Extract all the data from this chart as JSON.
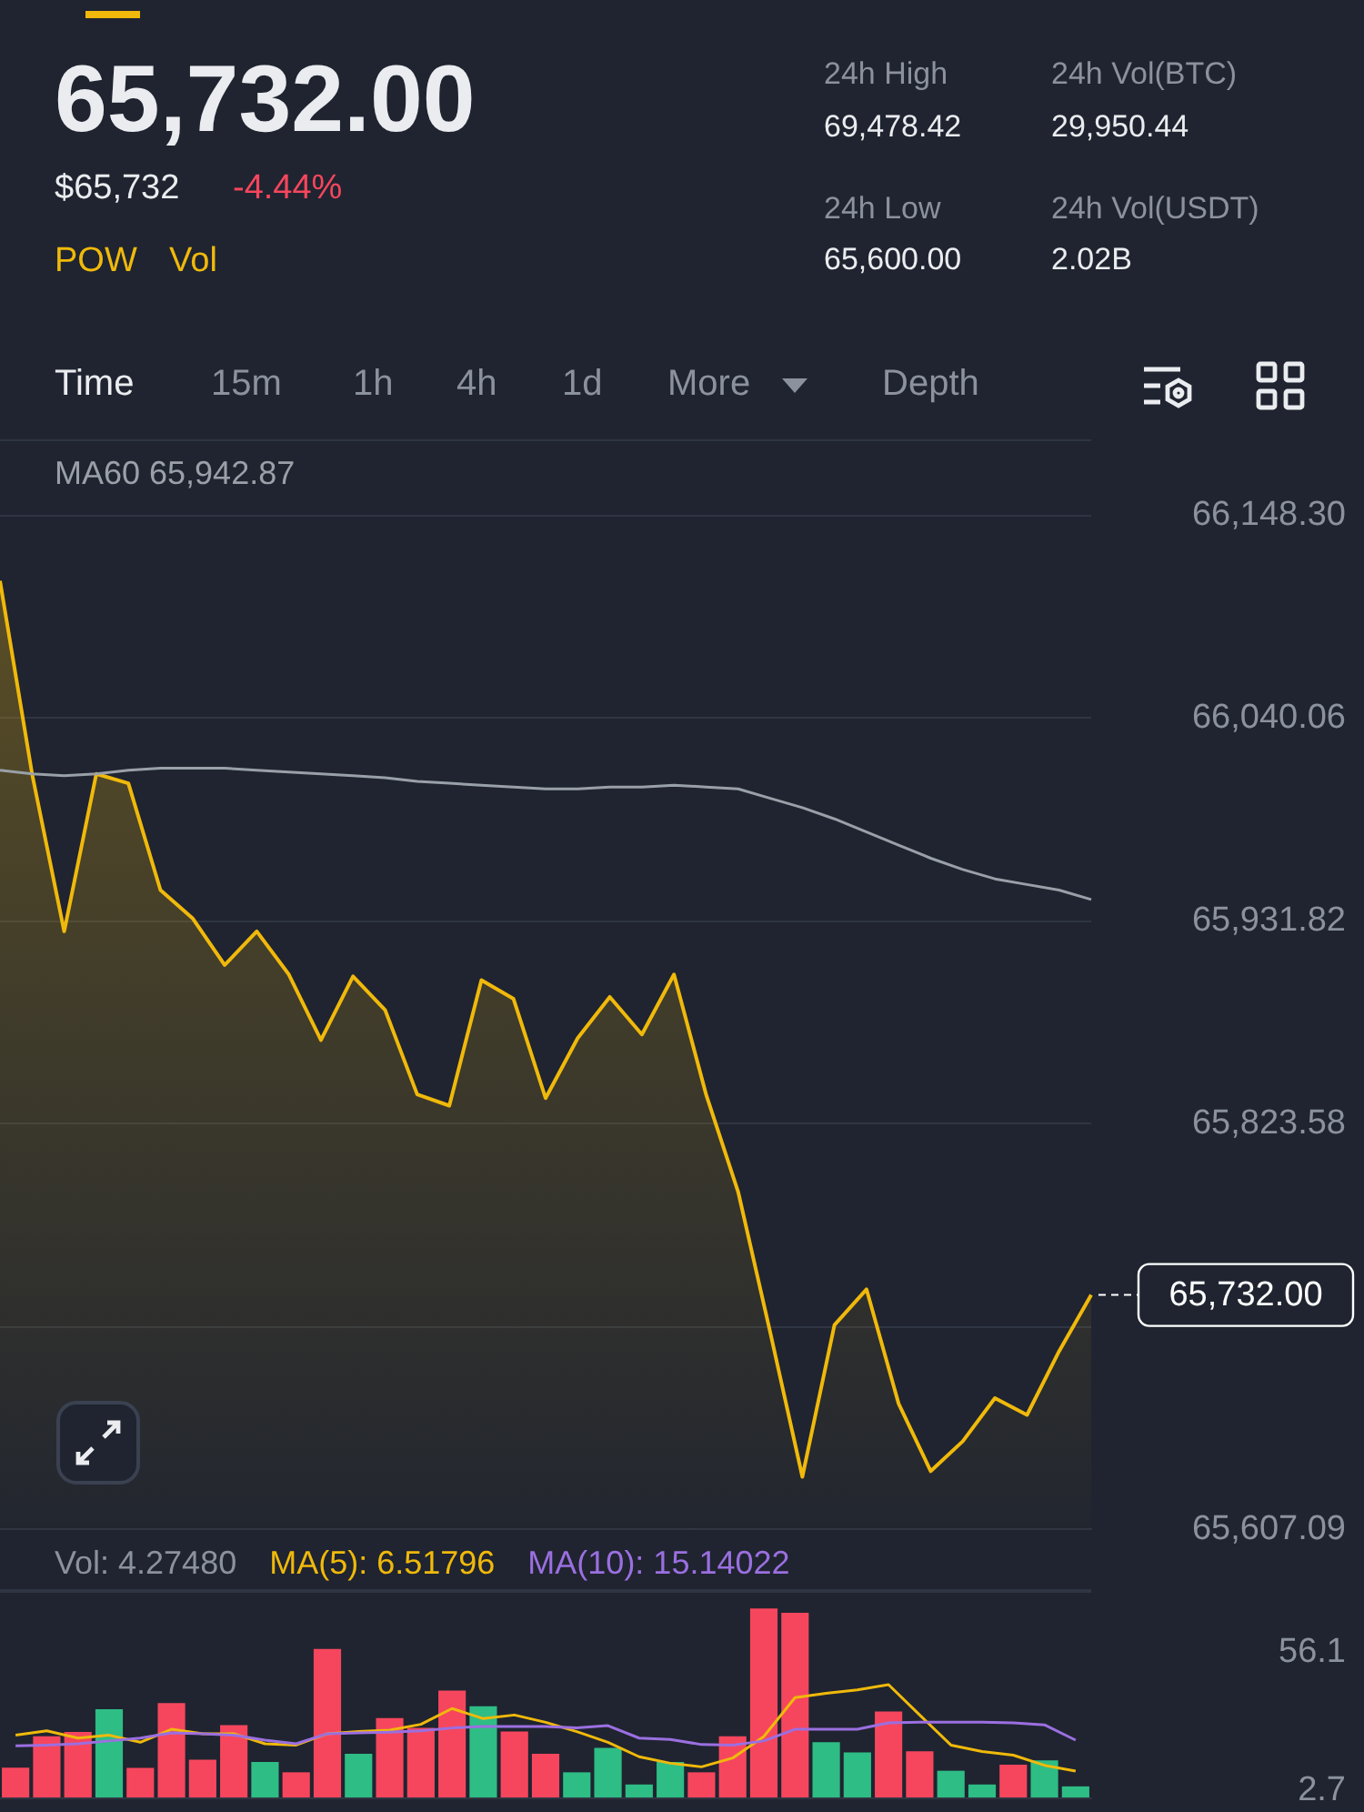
{
  "chart_data": [
    {
      "type": "area",
      "title": "65,732.00",
      "subtitle": "$65,732",
      "annotations": [
        "-4.44%",
        "POW",
        "Vol",
        "24h High",
        "69,478.42",
        "24h Low",
        "65,600.00",
        "24h Vol(BTC)",
        "29,950.44",
        "24h Vol(USDT)",
        "2.02B",
        "Time",
        "15m",
        "1h",
        "4h",
        "1d",
        "More",
        "Depth"
      ],
      "categories": [
        null,
        null,
        null,
        null,
        null,
        null,
        null,
        null,
        null,
        null,
        null,
        null,
        null,
        null,
        null,
        null,
        null,
        null,
        null,
        null,
        null,
        null,
        null,
        null,
        null,
        null,
        null,
        null,
        null,
        null,
        null,
        null,
        null,
        null,
        null
      ],
      "series": [
        {
          "type": "area",
          "color": "#f0b90b",
          "values": [
            66113,
            66010,
            65926,
            66010,
            66005,
            65948,
            65933,
            65908,
            65926,
            65903,
            65868,
            65902,
            65884,
            65839,
            65833,
            65900,
            65890,
            65837,
            65869,
            65891,
            65871,
            65903,
            65839,
            65787,
            65712,
            65635,
            65716,
            65735,
            65674,
            65638,
            65654,
            65677,
            65668,
            65702,
            65732
          ]
        },
        {
          "type": "line",
          "name": "MA60 65,942.87",
          "color": "#9aa0a8",
          "values": [
            66012,
            66010,
            66009,
            66010,
            66012,
            66013,
            66013,
            66013,
            66012,
            66011,
            66010,
            66009,
            66008,
            66006,
            66005,
            66004,
            66003,
            66002,
            66002,
            66003,
            66003,
            66004,
            66003,
            66002,
            65997,
            65992,
            65986,
            65979,
            65972,
            65965,
            65959,
            65954,
            65951,
            65948,
            65943
          ]
        }
      ],
      "ylim": [
        65607.09,
        66188
      ],
      "yticks": [
        {
          "value": 66148.3,
          "label": "66,148.30"
        },
        {
          "value": 66040.06,
          "label": "66,040.06"
        },
        {
          "value": 65931.82,
          "label": "65,931.82"
        },
        {
          "value": 65823.58,
          "label": "65,823.58"
        },
        {
          "value": 65715.34,
          "label": null
        },
        {
          "value": 65607.09,
          "label": "65,607.09"
        }
      ],
      "ref_lines": [
        {
          "axis": "y",
          "value": 65732,
          "label": "65,732.00",
          "line_style": "dashed",
          "color": "#ffffff"
        }
      ],
      "grid": "y",
      "marker": "none",
      "tick_labels": "y"
    },
    {
      "type": "bar",
      "categories": [
        null,
        null,
        null,
        null,
        null,
        null,
        null,
        null,
        null,
        null,
        null,
        null,
        null,
        null,
        null,
        null,
        null,
        null,
        null,
        null,
        null,
        null,
        null,
        null,
        null,
        null,
        null,
        null,
        null,
        null,
        null,
        null,
        null,
        null,
        null
      ],
      "series": [
        {
          "name": "Vol: 4.27480",
          "values": [
            11.5,
            23.6,
            25.3,
            34.0,
            11.4,
            36.4,
            14.6,
            27.9,
            13.7,
            9.7,
            57.3,
            16.8,
            30.6,
            26.8,
            41.2,
            35.2,
            25.4,
            16.8,
            9.7,
            19.1,
            5,
            13.7,
            9.7,
            23.6,
            72.9,
            71.2,
            21.3,
            17.4,
            33.2,
            17.8,
            10.3,
            5,
            12.6,
            14.3,
            4.2748
          ],
          "colors": [
            "#f6465d",
            "#f6465d",
            "#f6465d",
            "#2ebd85",
            "#f6465d",
            "#f6465d",
            "#f6465d",
            "#f6465d",
            "#2ebd85",
            "#f6465d",
            "#f6465d",
            "#2ebd85",
            "#f6465d",
            "#f6465d",
            "#f6465d",
            "#2ebd85",
            "#f6465d",
            "#f6465d",
            "#2ebd85",
            "#2ebd85",
            "#2ebd85",
            "#2ebd85",
            "#f6465d",
            "#f6465d",
            "#f6465d",
            "#f6465d",
            "#2ebd85",
            "#2ebd85",
            "#f6465d",
            "#f6465d",
            "#2ebd85",
            "#2ebd85",
            "#f6465d",
            "#2ebd85",
            "#2ebd85"
          ]
        }
      ],
      "ylim": [
        0,
        80
      ],
      "yticks": [
        56.1,
        2.7
      ],
      "tick_labels": "y"
    },
    {
      "type": "line",
      "categories": [
        null,
        null,
        null,
        null,
        null,
        null,
        null,
        null,
        null,
        null,
        null,
        null,
        null,
        null,
        null,
        null,
        null,
        null,
        null,
        null,
        null,
        null,
        null,
        null,
        null,
        null,
        null,
        null,
        null,
        null,
        null,
        null,
        null,
        null,
        null
      ],
      "series": [
        {
          "name": "MA(5): 6.51796",
          "color": "#f0b90b",
          "values": [
            24.0,
            25.7,
            22.9,
            24.0,
            21.3,
            26.3,
            24.6,
            24.6,
            20.7,
            20.2,
            24.6,
            25.4,
            26.0,
            28.2,
            34.3,
            30.4,
            31.8,
            29.0,
            25.4,
            21.3,
            15.7,
            13.2,
            11.8,
            15.2,
            23.5,
            38.5,
            40.2,
            41.5,
            43.5,
            31.8,
            20.2,
            17.7,
            16.3,
            12.4,
            10.2
          ]
        },
        {
          "name": "MA(10): 15.14022",
          "color": "#9b6fe0",
          "values": [
            19.9,
            20.2,
            20.7,
            21.8,
            22.9,
            24.9,
            24.6,
            24.0,
            22.1,
            20.7,
            24.6,
            24.9,
            25.2,
            25.7,
            26.8,
            27.4,
            27.4,
            27.4,
            26.8,
            27.7,
            22.9,
            22.4,
            20.4,
            20.2,
            21.8,
            26.3,
            26.3,
            26.3,
            28.8,
            29.0,
            29.0,
            29.0,
            28.8,
            28.0,
            22.1
          ]
        }
      ],
      "ylim": [
        0,
        80
      ],
      "marker": "none",
      "tick_labels": false
    }
  ]
}
